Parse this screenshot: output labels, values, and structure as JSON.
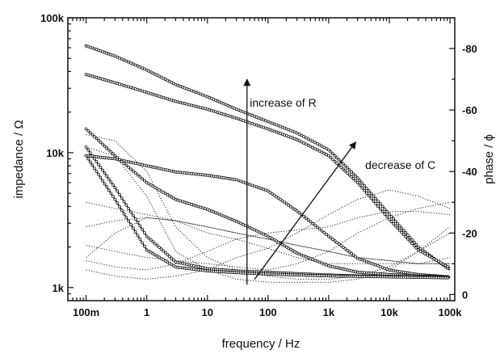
{
  "chart_data": {
    "type": "line",
    "xlabel": "frequency / Hz",
    "ylabel": "impedance / Ω",
    "y2label": "phase / ϕ",
    "x_scale": "log",
    "y_scale": "log",
    "xlim": [
      0.05,
      120000
    ],
    "ylim": [
      800,
      100000
    ],
    "y2lim": [
      2,
      -90
    ],
    "x_ticks": [
      {
        "value": 0.1,
        "label": "100m"
      },
      {
        "value": 1,
        "label": "1"
      },
      {
        "value": 10,
        "label": "10"
      },
      {
        "value": 100,
        "label": "100"
      },
      {
        "value": 1000,
        "label": "1k"
      },
      {
        "value": 10000,
        "label": "10k"
      },
      {
        "value": 100000,
        "label": "100k"
      }
    ],
    "y_ticks": [
      {
        "value": 1000,
        "label": "1k"
      },
      {
        "value": 10000,
        "label": "10k"
      },
      {
        "value": 100000,
        "label": "100k"
      }
    ],
    "y2_ticks": [
      {
        "value": 0,
        "label": "0"
      },
      {
        "value": -20,
        "label": "-20"
      },
      {
        "value": -40,
        "label": "-40"
      },
      {
        "value": -60,
        "label": "-60"
      },
      {
        "value": -80,
        "label": "-80"
      }
    ],
    "annotations": [
      {
        "text": "increase of R",
        "x": 50,
        "y": 22000
      },
      {
        "text": "decrease of C",
        "x": 4000,
        "y": 7600
      }
    ],
    "arrows": [
      {
        "x1": 45,
        "y1": 1050,
        "x2": 45,
        "y2": 35000
      },
      {
        "x1": 60,
        "y1": 1150,
        "x2": 2800,
        "y2": 12000
      }
    ],
    "impedance_series": [
      {
        "x": [
          0.1,
          0.3,
          1,
          3,
          10,
          30,
          100,
          300,
          1000,
          3000,
          10000,
          30000,
          100000
        ],
        "y": [
          62000,
          52000,
          41000,
          32000,
          26000,
          21000,
          17000,
          14000,
          10500,
          6500,
          3500,
          2000,
          1350
        ]
      },
      {
        "x": [
          0.1,
          0.3,
          1,
          3,
          10,
          30,
          100,
          300,
          1000,
          3000,
          10000,
          30000,
          100000
        ],
        "y": [
          38000,
          33000,
          28000,
          24000,
          21000,
          18000,
          15000,
          12500,
          9500,
          6000,
          3200,
          1900,
          1400
        ]
      },
      {
        "x": [
          0.1,
          0.3,
          1,
          3,
          10,
          30,
          100,
          300,
          1000,
          3000,
          10000,
          30000,
          100000
        ],
        "y": [
          9500,
          9000,
          8000,
          7200,
          6800,
          6300,
          5200,
          3700,
          2400,
          1650,
          1350,
          1250,
          1200
        ]
      },
      {
        "x": [
          0.1,
          0.3,
          1,
          3,
          10,
          30,
          100,
          300,
          1000,
          3000,
          10000,
          30000,
          100000
        ],
        "y": [
          15000,
          9500,
          6000,
          4500,
          3800,
          3100,
          2400,
          1800,
          1450,
          1300,
          1250,
          1220,
          1200
        ]
      },
      {
        "x": [
          0.1,
          0.3,
          1,
          3,
          10,
          30,
          100,
          300,
          1000,
          3000,
          10000,
          30000,
          100000
        ],
        "y": [
          11000,
          5500,
          2400,
          1550,
          1380,
          1330,
          1300,
          1270,
          1240,
          1220,
          1210,
          1200,
          1190
        ]
      },
      {
        "x": [
          0.1,
          0.3,
          1,
          3,
          10,
          30,
          100,
          300,
          1000,
          3000,
          10000,
          30000,
          100000
        ],
        "y": [
          9500,
          4500,
          1900,
          1420,
          1330,
          1290,
          1260,
          1240,
          1220,
          1210,
          1200,
          1190,
          1180
        ]
      }
    ],
    "phase_series": [
      {
        "x": [
          0.1,
          0.3,
          1,
          3,
          10,
          30,
          100,
          300,
          1000,
          3000,
          10000,
          30000,
          100000
        ],
        "y": [
          -52,
          -50,
          -40,
          -22,
          -12,
          -8,
          -6,
          -5,
          -5,
          -6,
          -9,
          -14,
          -20
        ]
      },
      {
        "x": [
          0.1,
          0.3,
          1,
          3,
          10,
          30,
          100,
          300,
          1000,
          3000,
          10000,
          30000,
          100000
        ],
        "y": [
          -48,
          -45,
          -32,
          -14,
          -8,
          -5,
          -4,
          -4,
          -4,
          -5,
          -8,
          -14,
          -22
        ]
      },
      {
        "x": [
          0.1,
          0.3,
          1,
          3,
          10,
          30,
          100,
          300,
          1000,
          3000,
          10000,
          30000,
          100000
        ],
        "y": [
          -12,
          -20,
          -25,
          -24,
          -22,
          -20,
          -18,
          -16,
          -14,
          -12,
          -11,
          -10,
          -10
        ]
      },
      {
        "x": [
          0.1,
          0.3,
          1,
          3,
          10,
          30,
          100,
          300,
          1000,
          3000,
          10000,
          30000,
          100000
        ],
        "y": [
          -22,
          -24,
          -25,
          -24,
          -22,
          -20,
          -18,
          -16,
          -14,
          -12,
          -11,
          -10,
          -10
        ]
      },
      {
        "x": [
          0.1,
          0.3,
          1,
          3,
          10,
          30,
          100,
          300,
          1000,
          3000,
          10000,
          30000,
          100000
        ],
        "y": [
          -11,
          -9,
          -8,
          -10,
          -14,
          -18,
          -20,
          -21,
          -22,
          -25,
          -27,
          -27,
          -26
        ]
      },
      {
        "x": [
          0.1,
          0.3,
          1,
          3,
          10,
          30,
          100,
          300,
          1000,
          3000,
          10000,
          30000,
          100000
        ],
        "y": [
          -8,
          -6,
          -5,
          -6,
          -8,
          -12,
          -15,
          -20,
          -26,
          -31,
          -34,
          -32,
          -28
        ]
      },
      {
        "x": [
          0.1,
          0.3,
          1,
          3,
          10,
          30,
          100,
          300,
          1000,
          3000,
          10000,
          30000,
          100000
        ],
        "y": [
          -30,
          -28,
          -26,
          -24,
          -20,
          -18,
          -15,
          -12,
          -10,
          -10,
          -10,
          -10,
          -12
        ]
      },
      {
        "x": [
          0.1,
          0.3,
          1,
          3,
          10,
          30,
          100,
          300,
          1000,
          3000,
          10000,
          30000,
          100000
        ],
        "y": [
          -16,
          -14,
          -12,
          -11,
          -10,
          -9,
          -8,
          -10,
          -14,
          -20,
          -25,
          -28,
          -30
        ]
      }
    ],
    "grid": false
  }
}
